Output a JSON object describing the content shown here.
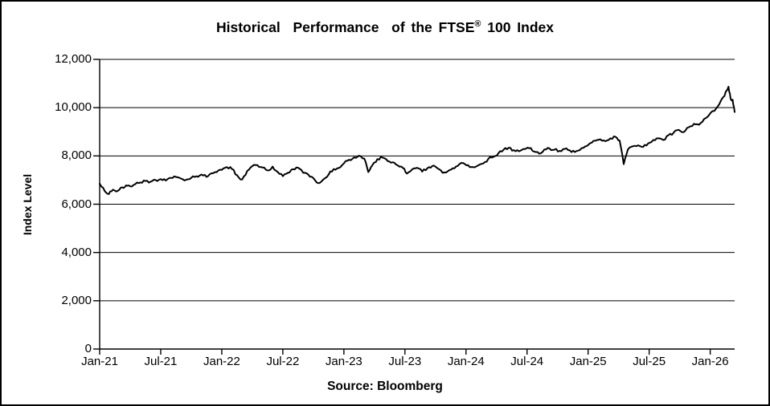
{
  "title": {
    "pre": "Historical  Performance  of the FTSE",
    "sup": "®",
    "post": " 100 Index",
    "full": "Historical Performance of the FTSE® 100 Index"
  },
  "chart_data": {
    "type": "line",
    "title": "Historical Performance of the FTSE® 100 Index",
    "ylabel": "Index Level",
    "xlabel": "",
    "source_label": "Source: Bloomberg",
    "series_name": "FTSE 100 Index Level",
    "line_color": "#000000",
    "background_color": "#ffffff",
    "grid": "horizontal",
    "legend_position": "none",
    "ylim": [
      0,
      12000
    ],
    "y_ticks": [
      0,
      2000,
      4000,
      6000,
      8000,
      10000,
      12000
    ],
    "y_tick_labels": [
      "0",
      "2,000",
      "4,000",
      "6,000",
      "8,000",
      "10,000",
      "12,000"
    ],
    "x_tick_labels": [
      "Jan-21",
      "Jul-21",
      "Jan-22",
      "Jul-22",
      "Jan-23",
      "Jul-23",
      "Jan-24",
      "Jul-24",
      "Jan-25",
      "Jul-25",
      "Jan-26"
    ],
    "x_tick_months": [
      0,
      6,
      12,
      18,
      24,
      30,
      36,
      42,
      48,
      54,
      60
    ],
    "x_range_months": [
      0,
      62.4
    ],
    "points": [
      [
        0,
        6850
      ],
      [
        0.5,
        6550
      ],
      [
        0.9,
        6420
      ],
      [
        1.3,
        6600
      ],
      [
        1.8,
        6560
      ],
      [
        2.2,
        6700
      ],
      [
        2.6,
        6780
      ],
      [
        3,
        6740
      ],
      [
        3.5,
        6830
      ],
      [
        4,
        6900
      ],
      [
        4.5,
        6960
      ],
      [
        5,
        6930
      ],
      [
        5.5,
        7000
      ],
      [
        6,
        7040
      ],
      [
        6.5,
        6980
      ],
      [
        7,
        7090
      ],
      [
        7.5,
        7130
      ],
      [
        8,
        7060
      ],
      [
        8.5,
        7010
      ],
      [
        9,
        7090
      ],
      [
        9.5,
        7160
      ],
      [
        10,
        7230
      ],
      [
        10.5,
        7130
      ],
      [
        11,
        7280
      ],
      [
        11.5,
        7330
      ],
      [
        12,
        7420
      ],
      [
        12.5,
        7540
      ],
      [
        13,
        7460
      ],
      [
        13.5,
        7200
      ],
      [
        14,
        7020
      ],
      [
        14.5,
        7380
      ],
      [
        15,
        7580
      ],
      [
        15.5,
        7620
      ],
      [
        16,
        7520
      ],
      [
        16.5,
        7400
      ],
      [
        17,
        7560
      ],
      [
        17.5,
        7330
      ],
      [
        18,
        7160
      ],
      [
        18.5,
        7300
      ],
      [
        19,
        7450
      ],
      [
        19.5,
        7510
      ],
      [
        20,
        7300
      ],
      [
        20.5,
        7230
      ],
      [
        21,
        7080
      ],
      [
        21.5,
        6870
      ],
      [
        22,
        7030
      ],
      [
        22.5,
        7230
      ],
      [
        23,
        7460
      ],
      [
        23.5,
        7500
      ],
      [
        24,
        7690
      ],
      [
        24.5,
        7840
      ],
      [
        25,
        7940
      ],
      [
        25.5,
        8010
      ],
      [
        26,
        7890
      ],
      [
        26.4,
        7330
      ],
      [
        26.8,
        7620
      ],
      [
        27.3,
        7870
      ],
      [
        27.8,
        7930
      ],
      [
        28.3,
        7790
      ],
      [
        28.8,
        7740
      ],
      [
        29.3,
        7610
      ],
      [
        29.8,
        7500
      ],
      [
        30.2,
        7270
      ],
      [
        30.7,
        7440
      ],
      [
        31.2,
        7510
      ],
      [
        31.7,
        7350
      ],
      [
        32.2,
        7490
      ],
      [
        32.7,
        7590
      ],
      [
        33.2,
        7490
      ],
      [
        33.7,
        7300
      ],
      [
        34.2,
        7360
      ],
      [
        34.7,
        7490
      ],
      [
        35.2,
        7590
      ],
      [
        35.7,
        7710
      ],
      [
        36.2,
        7620
      ],
      [
        36.7,
        7540
      ],
      [
        37.2,
        7610
      ],
      [
        37.7,
        7690
      ],
      [
        38.2,
        7880
      ],
      [
        38.7,
        7960
      ],
      [
        39.2,
        8120
      ],
      [
        39.7,
        8260
      ],
      [
        40.2,
        8340
      ],
      [
        40.7,
        8240
      ],
      [
        41.2,
        8190
      ],
      [
        41.7,
        8290
      ],
      [
        42.2,
        8320
      ],
      [
        42.7,
        8180
      ],
      [
        43.2,
        8090
      ],
      [
        43.7,
        8270
      ],
      [
        44.2,
        8310
      ],
      [
        44.7,
        8260
      ],
      [
        45.2,
        8210
      ],
      [
        45.7,
        8290
      ],
      [
        46.2,
        8230
      ],
      [
        46.7,
        8160
      ],
      [
        47.2,
        8250
      ],
      [
        47.7,
        8390
      ],
      [
        48.2,
        8530
      ],
      [
        48.7,
        8630
      ],
      [
        49.2,
        8690
      ],
      [
        49.7,
        8610
      ],
      [
        50.2,
        8730
      ],
      [
        50.7,
        8790
      ],
      [
        51.1,
        8640
      ],
      [
        51.5,
        7660
      ],
      [
        51.9,
        8260
      ],
      [
        52.4,
        8400
      ],
      [
        52.9,
        8440
      ],
      [
        53.4,
        8370
      ],
      [
        53.9,
        8520
      ],
      [
        54.4,
        8660
      ],
      [
        54.9,
        8730
      ],
      [
        55.4,
        8660
      ],
      [
        55.9,
        8860
      ],
      [
        56.4,
        8960
      ],
      [
        56.9,
        9080
      ],
      [
        57.4,
        8990
      ],
      [
        57.9,
        9190
      ],
      [
        58.4,
        9330
      ],
      [
        58.9,
        9290
      ],
      [
        59.4,
        9530
      ],
      [
        59.9,
        9700
      ],
      [
        60.4,
        9860
      ],
      [
        60.9,
        10150
      ],
      [
        61.4,
        10480
      ],
      [
        61.8,
        10870
      ],
      [
        62.0,
        10380
      ],
      [
        62.2,
        10330
      ],
      [
        62.4,
        9820
      ]
    ]
  }
}
